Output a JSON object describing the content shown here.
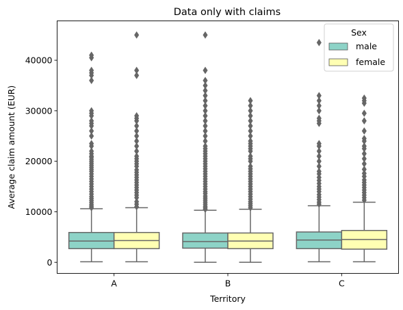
{
  "chart_data": {
    "type": "box",
    "title": "Data only with claims",
    "xlabel": "Territory",
    "ylabel": "Average claim amount (EUR)",
    "ylim": [
      -2200,
      47800
    ],
    "yticks": [
      0,
      10000,
      20000,
      30000,
      40000
    ],
    "categories": [
      "A",
      "B",
      "C"
    ],
    "legend": {
      "title": "Sex",
      "placement": "top-right"
    },
    "series": [
      {
        "name": "male",
        "color": "#8dd3c7",
        "boxes": [
          {
            "whisker_low": 100,
            "q1": 2700,
            "median": 4200,
            "q3": 5900,
            "whisker_high": 10600,
            "outliers": [
              10800,
              11100,
              11400,
              11800,
              12200,
              12600,
              13000,
              13500,
              14000,
              14500,
              15000,
              15500,
              16000,
              16500,
              17000,
              17500,
              18000,
              18400,
              18800,
              19200,
              19600,
              20000,
              20400,
              20800,
              21000,
              21500,
              22000,
              23000,
              23500,
              25000,
              26000,
              27000,
              27500,
              28000,
              29000,
              29500,
              30000,
              36000,
              37000,
              37500,
              38000,
              40500,
              41000
            ]
          },
          {
            "whisker_low": 0,
            "q1": 2800,
            "median": 4100,
            "q3": 5800,
            "whisker_high": 10300,
            "outliers": [
              10500,
              10800,
              11100,
              11500,
              11900,
              12300,
              12700,
              13100,
              13600,
              14000,
              14500,
              15000,
              15500,
              16000,
              16500,
              17000,
              17500,
              18000,
              18500,
              19000,
              19500,
              20000,
              20500,
              21000,
              21500,
              22000,
              22500,
              23000,
              24000,
              25000,
              26000,
              27000,
              28000,
              29000,
              30000,
              31000,
              32000,
              33000,
              34000,
              35000,
              36000,
              38000,
              45000
            ]
          },
          {
            "whisker_low": 100,
            "q1": 2700,
            "median": 4400,
            "q3": 6000,
            "whisker_high": 11200,
            "outliers": [
              11500,
              11900,
              12400,
              12900,
              13400,
              14000,
              14500,
              15000,
              15600,
              16200,
              16800,
              17500,
              18000,
              19000,
              20000,
              21000,
              22000,
              23000,
              23500,
              27500,
              28000,
              28500,
              30000,
              31000,
              32000,
              33000,
              43500
            ]
          }
        ]
      },
      {
        "name": "female",
        "color": "#ffffb3",
        "boxes": [
          {
            "whisker_low": 100,
            "q1": 2700,
            "median": 4300,
            "q3": 5900,
            "whisker_high": 10800,
            "outliers": [
              11000,
              11500,
              12000,
              12800,
              13300,
              13800,
              14300,
              14800,
              15300,
              15800,
              16300,
              16800,
              17300,
              17800,
              18300,
              19000,
              19500,
              20000,
              20500,
              21000,
              22000,
              23000,
              24000,
              25000,
              26000,
              27000,
              28000,
              28500,
              29000,
              37000,
              38000,
              45000
            ]
          },
          {
            "whisker_low": 0,
            "q1": 2700,
            "median": 4200,
            "q3": 5800,
            "whisker_high": 10500,
            "outliers": [
              10800,
              11200,
              11600,
              12000,
              12500,
              13000,
              13500,
              14000,
              14500,
              15000,
              15500,
              16000,
              16500,
              17000,
              17500,
              18000,
              18500,
              19000,
              20000,
              20500,
              21000,
              22000,
              22500,
              23000,
              23500,
              24000,
              25000,
              26000,
              27000,
              28000,
              29000,
              30000,
              31000,
              32000
            ]
          },
          {
            "whisker_low": 100,
            "q1": 2600,
            "median": 4500,
            "q3": 6300,
            "whisker_high": 11900,
            "outliers": [
              12300,
              12800,
              13300,
              13800,
              14300,
              14800,
              15300,
              15800,
              16300,
              17000,
              17600,
              18400,
              19500,
              20500,
              21500,
              22500,
              23000,
              24000,
              24500,
              26000,
              28000,
              29500,
              31500,
              32000,
              32500
            ]
          }
        ]
      }
    ]
  }
}
